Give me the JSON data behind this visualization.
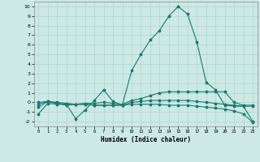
{
  "xlabel": "Humidex (Indice chaleur)",
  "ylabel": "",
  "xlim": [
    -0.5,
    23.5
  ],
  "ylim": [
    -2.5,
    10.5
  ],
  "xticks": [
    0,
    1,
    2,
    3,
    4,
    5,
    6,
    7,
    8,
    9,
    10,
    11,
    12,
    13,
    14,
    15,
    16,
    17,
    18,
    19,
    20,
    21,
    22,
    23
  ],
  "yticks": [
    -2,
    -1,
    0,
    1,
    2,
    3,
    4,
    5,
    6,
    7,
    8,
    9,
    10
  ],
  "background_color": "#cce9e5",
  "grid_color": "#b0d5d0",
  "line_color": "#1a7a6e",
  "series": [
    {
      "x": [
        0,
        1,
        2,
        3,
        4,
        5,
        6,
        7,
        8,
        9,
        10,
        11,
        12,
        13,
        14,
        15,
        16,
        17,
        18,
        19,
        20,
        21,
        22,
        23
      ],
      "y": [
        -1.2,
        -0.1,
        -0.2,
        -0.2,
        -1.7,
        -0.8,
        0.2,
        1.3,
        0.1,
        -0.3,
        3.3,
        5.0,
        6.5,
        7.5,
        9.0,
        10.0,
        9.2,
        6.3,
        2.1,
        1.3,
        -0.3,
        -0.4,
        -0.4,
        -0.4
      ]
    },
    {
      "x": [
        0,
        1,
        2,
        3,
        4,
        5,
        6,
        7,
        8,
        9,
        10,
        11,
        12,
        13,
        14,
        15,
        16,
        17,
        18,
        19,
        20,
        21,
        22,
        23
      ],
      "y": [
        -0.5,
        0.1,
        0.0,
        -0.1,
        -0.2,
        -0.1,
        -0.1,
        0.0,
        -0.1,
        -0.2,
        0.2,
        0.4,
        0.7,
        1.0,
        1.1,
        1.1,
        1.1,
        1.1,
        1.1,
        1.1,
        1.1,
        0.0,
        -0.3,
        -0.3
      ]
    },
    {
      "x": [
        0,
        1,
        2,
        3,
        4,
        5,
        6,
        7,
        8,
        9,
        10,
        11,
        12,
        13,
        14,
        15,
        16,
        17,
        18,
        19,
        20,
        21,
        22,
        23
      ],
      "y": [
        -0.2,
        0.1,
        -0.1,
        -0.3,
        -0.2,
        -0.2,
        -0.3,
        -0.3,
        -0.3,
        -0.3,
        0.0,
        0.1,
        0.2,
        0.2,
        0.2,
        0.2,
        0.2,
        0.1,
        0.0,
        -0.1,
        -0.2,
        -0.3,
        -0.4,
        -2.0
      ]
    },
    {
      "x": [
        0,
        1,
        2,
        3,
        4,
        5,
        6,
        7,
        8,
        9,
        10,
        11,
        12,
        13,
        14,
        15,
        16,
        17,
        18,
        19,
        20,
        21,
        22,
        23
      ],
      "y": [
        0.0,
        0.1,
        -0.1,
        -0.2,
        -0.2,
        -0.2,
        -0.3,
        -0.3,
        -0.3,
        -0.3,
        -0.2,
        -0.2,
        -0.2,
        -0.2,
        -0.3,
        -0.3,
        -0.3,
        -0.4,
        -0.5,
        -0.6,
        -0.7,
        -0.9,
        -1.2,
        -2.1
      ]
    }
  ]
}
